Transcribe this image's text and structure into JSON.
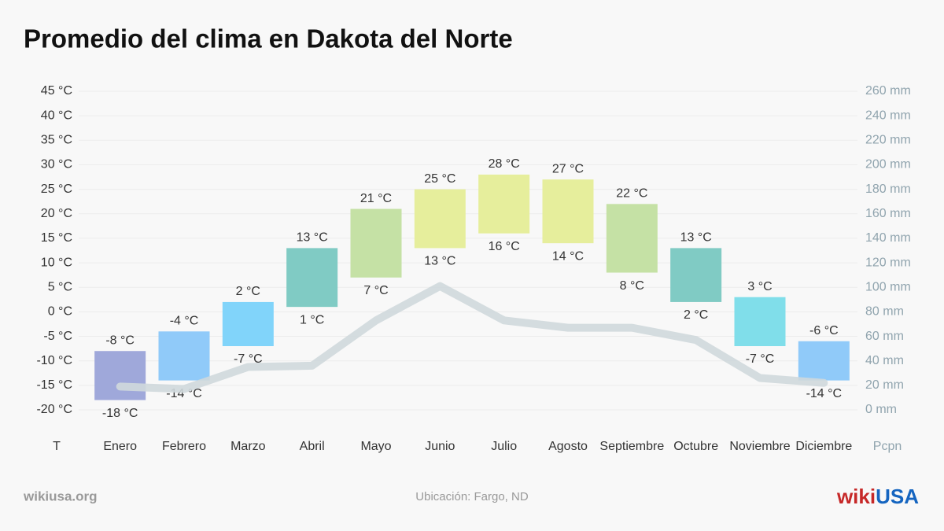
{
  "chart_data": {
    "type": "floating-bar",
    "title": "Promedio del clima en Dakota del Norte",
    "categories": [
      "Enero",
      "Febrero",
      "Marzo",
      "Abril",
      "Mayo",
      "Junio",
      "Julio",
      "Agosto",
      "Septiembre",
      "Octubre",
      "Noviembre",
      "Diciembre"
    ],
    "colors": [
      "#9fa8da",
      "#90caf9",
      "#81d4fa",
      "#80cbc4",
      "#c5e1a5",
      "#e6ee9c",
      "#e6ee9c",
      "#e6ee9c",
      "#c5e1a5",
      "#80cbc4",
      "#80deea",
      "#90caf9"
    ],
    "series": [
      {
        "values": [
          -8,
          -4,
          2,
          13,
          21,
          25,
          28,
          27,
          22,
          13,
          3,
          -6
        ],
        "value_labels": [
          "-8 °C",
          "-4 °C",
          "2 °C",
          "13 °C",
          "21 °C",
          "25 °C",
          "28 °C",
          "27 °C",
          "22 °C",
          "13 °C",
          "3 °C",
          "-6 °C"
        ]
      },
      {
        "values": [
          -18,
          -14,
          -7,
          1,
          7,
          13,
          16,
          14,
          8,
          2,
          -7,
          -14
        ],
        "value_labels": [
          "-18 °C",
          "-14 °C",
          "-7 °C",
          "1 °C",
          "7 °C",
          "13 °C",
          "16 °C",
          "14 °C",
          "8 °C",
          "2 °C",
          "-7 °C",
          "-14 °C"
        ]
      },
      {
        "type": "line",
        "axis": "y2",
        "color": "#cfd8dc",
        "values": [
          19,
          17,
          35,
          36,
          73,
          101,
          73,
          67,
          67,
          57,
          26,
          22
        ]
      }
    ],
    "ylabel": "T",
    "y2label": "Pcpn",
    "ylim": [
      -20,
      45
    ],
    "yticks": [
      {
        "value": -20,
        "label": "-20 °C"
      },
      {
        "value": -15,
        "label": "-15 °C"
      },
      {
        "value": -10,
        "label": "-10 °C"
      },
      {
        "value": -5,
        "label": "-5 °C"
      },
      {
        "value": 0,
        "label": "0 °C"
      },
      {
        "value": 5,
        "label": "5 °C"
      },
      {
        "value": 10,
        "label": "10 °C"
      },
      {
        "value": 15,
        "label": "15 °C"
      },
      {
        "value": 20,
        "label": "20 °C"
      },
      {
        "value": 25,
        "label": "25 °C"
      },
      {
        "value": 30,
        "label": "30 °C"
      },
      {
        "value": 35,
        "label": "35 °C"
      },
      {
        "value": 40,
        "label": "40 °C"
      },
      {
        "value": 45,
        "label": "45 °C"
      }
    ],
    "y2lim": [
      0,
      260
    ],
    "y2ticks": [
      {
        "value": 0,
        "label": "0 mm"
      },
      {
        "value": 20,
        "label": "20 mm"
      },
      {
        "value": 40,
        "label": "40 mm"
      },
      {
        "value": 60,
        "label": "60 mm"
      },
      {
        "value": 80,
        "label": "80 mm"
      },
      {
        "value": 100,
        "label": "100 mm"
      },
      {
        "value": 120,
        "label": "120 mm"
      },
      {
        "value": 140,
        "label": "140 mm"
      },
      {
        "value": 160,
        "label": "160 mm"
      },
      {
        "value": 180,
        "label": "180 mm"
      },
      {
        "value": 200,
        "label": "200 mm"
      },
      {
        "value": 220,
        "label": "220 mm"
      },
      {
        "value": 240,
        "label": "240 mm"
      },
      {
        "value": 260,
        "label": "260 mm"
      }
    ],
    "grid": true
  },
  "footer": {
    "site": "wikiusa.org",
    "location": "Ubicación: Fargo, ND",
    "logo_left": "wiki",
    "logo_right": "USA"
  }
}
